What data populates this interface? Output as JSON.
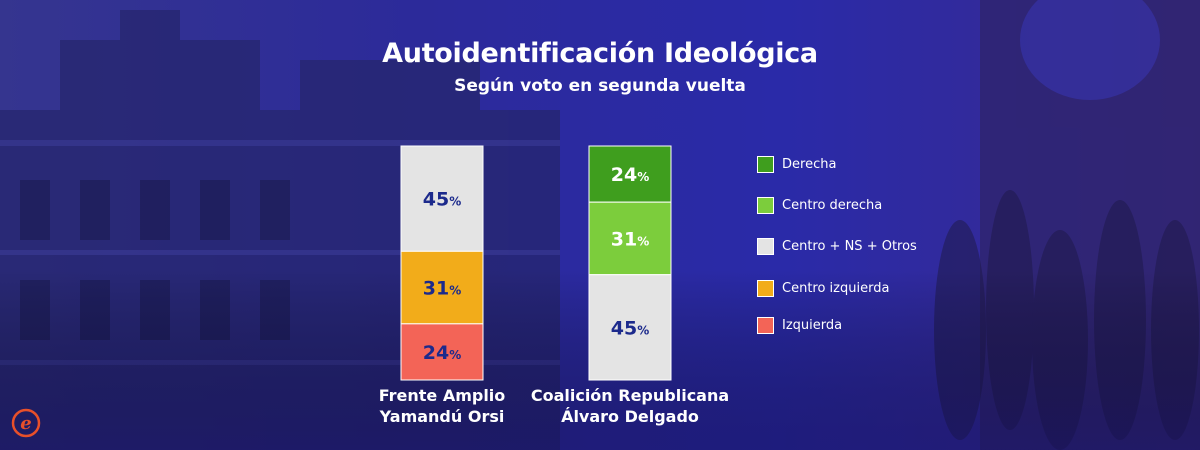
{
  "title": "Autoidentificación Ideológica",
  "subtitle": "Según voto en segunda vuelta",
  "chart_data": {
    "type": "bar",
    "stacked": true,
    "unit": "%",
    "categories": [
      [
        "Frente Amplio",
        "Yamandú Orsi"
      ],
      [
        "Coalición Republicana",
        "Álvaro Delgado"
      ]
    ],
    "series": [
      {
        "name": "Derecha",
        "color": "#3f9e1e",
        "values": [
          0,
          24
        ]
      },
      {
        "name": "Centro derecha",
        "color": "#7ccd3c",
        "values": [
          0,
          31
        ]
      },
      {
        "name": "Centro + NS + Otros",
        "color": "#e4e4e4",
        "values": [
          45,
          45
        ]
      },
      {
        "name": "Centro izquierda",
        "color": "#f2ac1a",
        "values": [
          31,
          0
        ]
      },
      {
        "name": "Izquierda",
        "color": "#f36457",
        "values": [
          24,
          0
        ]
      }
    ],
    "stack_order_top_to_bottom": [
      "Derecha",
      "Centro derecha",
      "Centro + NS + Otros",
      "Centro izquierda",
      "Izquierda"
    ],
    "label_colors": {
      "Derecha": "#ffffff",
      "Centro derecha": "#ffffff",
      "Centro + NS + Otros": "#1c2a8c",
      "Centro izquierda": "#1c2a8c",
      "Izquierda": "#1c2a8c"
    },
    "legend_position": "right"
  },
  "logo": {
    "icon": "e-logo-icon",
    "color": "#e8502a"
  }
}
